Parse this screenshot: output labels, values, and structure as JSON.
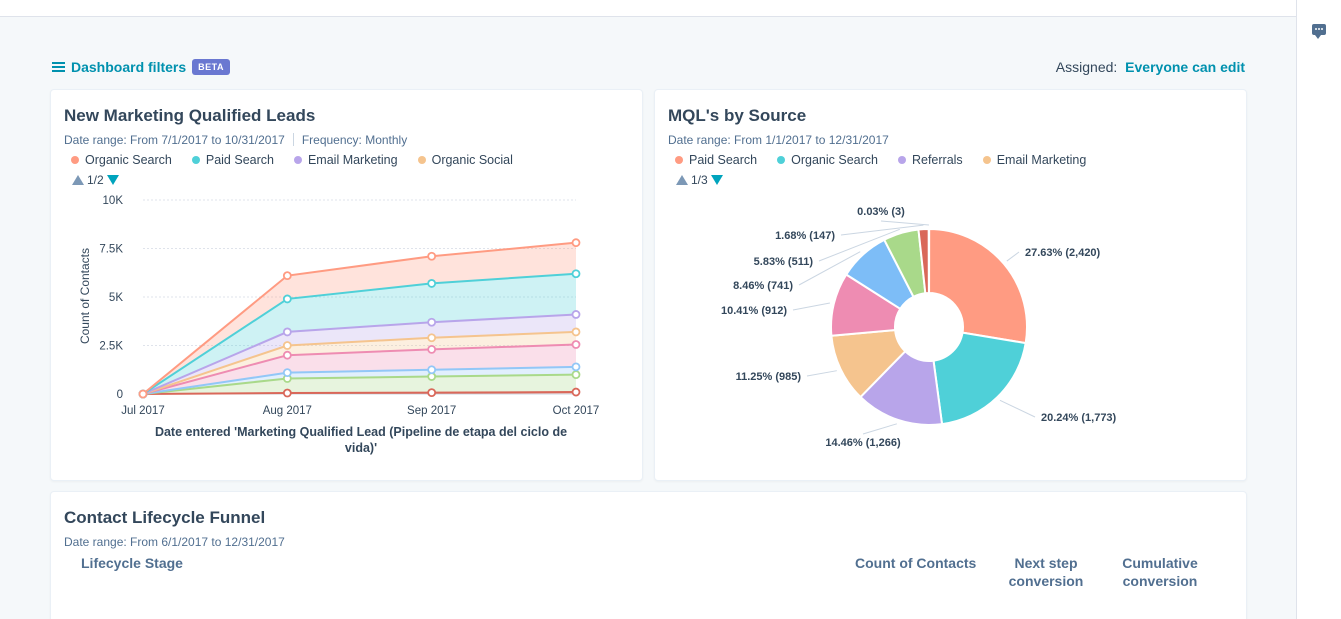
{
  "filters": {
    "label": "Dashboard filters",
    "badge": "BETA"
  },
  "assigned": {
    "label": "Assigned:",
    "value": "Everyone can edit"
  },
  "colors": {
    "accent": "#0091ae",
    "text": "#33475b"
  },
  "mql_chart": {
    "title": "New Marketing Qualified Leads",
    "date_range": "Date range: From 7/1/2017 to 10/31/2017",
    "frequency": "Frequency: Monthly",
    "pager": "1/2",
    "chart_data": {
      "type": "area",
      "stacked": true,
      "categories": [
        "Jul 2017",
        "Aug 2017",
        "Sep 2017",
        "Oct 2017"
      ],
      "ylabel": "Count of Contacts",
      "xlabel": "Date entered 'Marketing Qualified Lead (Pipeline de etapa del ciclo de vida)'",
      "ylim": [
        0,
        10000
      ],
      "yticks": [
        "0",
        "2.5K",
        "5K",
        "7.5K",
        "10K"
      ],
      "legend": [
        {
          "name": "Organic Search",
          "color": "#ff9b82"
        },
        {
          "name": "Paid Search",
          "color": "#4fd0d8"
        },
        {
          "name": "Email Marketing",
          "color": "#b8a5ea"
        },
        {
          "name": "Organic Social",
          "color": "#f5c48e"
        }
      ],
      "series": [
        {
          "color": "#d9685a",
          "values": [
            0,
            50,
            70,
            100
          ]
        },
        {
          "color": "#a9d98a",
          "values": [
            0,
            800,
            900,
            1000
          ]
        },
        {
          "color": "#92c7f7",
          "values": [
            0,
            1100,
            1250,
            1400
          ]
        },
        {
          "color": "#ee8cb2",
          "values": [
            0,
            2000,
            2300,
            2550
          ]
        },
        {
          "color": "#f5c48e",
          "values": [
            0,
            2500,
            2900,
            3200
          ]
        },
        {
          "color": "#b8a5ea",
          "values": [
            0,
            3200,
            3700,
            4100
          ]
        },
        {
          "color": "#4fd0d8",
          "values": [
            0,
            4900,
            5700,
            6200
          ]
        },
        {
          "color": "#ff9b82",
          "values": [
            0,
            6100,
            7100,
            7800
          ]
        }
      ]
    }
  },
  "source_chart": {
    "title": "MQL's by Source",
    "date_range": "Date range: From 1/1/2017 to 12/31/2017",
    "pager": "1/3",
    "chart_data": {
      "type": "pie",
      "donut": true,
      "legend": [
        {
          "name": "Paid Search",
          "color": "#ff9b82"
        },
        {
          "name": "Organic Search",
          "color": "#4fd0d8"
        },
        {
          "name": "Referrals",
          "color": "#b8a5ea"
        },
        {
          "name": "Email Marketing",
          "color": "#f5c48e"
        }
      ],
      "slices": [
        {
          "label": "27.63% (2,420)",
          "value": 2420,
          "color": "#ff9b82"
        },
        {
          "label": "20.24% (1,773)",
          "value": 1773,
          "color": "#4fd0d8"
        },
        {
          "label": "14.46% (1,266)",
          "value": 1266,
          "color": "#b8a5ea"
        },
        {
          "label": "11.25% (985)",
          "value": 985,
          "color": "#f5c48e"
        },
        {
          "label": "10.41% (912)",
          "value": 912,
          "color": "#ee8cb2"
        },
        {
          "label": "8.46% (741)",
          "value": 741,
          "color": "#7dbdf7"
        },
        {
          "label": "5.83% (511)",
          "value": 511,
          "color": "#a9d98a"
        },
        {
          "label": "1.68% (147)",
          "value": 147,
          "color": "#d9685a"
        },
        {
          "label": "0.03% (3)",
          "value": 3,
          "color": "#516f90"
        }
      ]
    }
  },
  "funnel": {
    "title": "Contact Lifecycle Funnel",
    "date_range": "Date range: From 6/1/2017 to 12/31/2017",
    "columns": {
      "stage": "Lifecycle Stage",
      "count": "Count of Contacts",
      "next_1": "Next step",
      "next_2": "conversion",
      "cum_1": "Cumulative",
      "cum_2": "conversion"
    }
  }
}
